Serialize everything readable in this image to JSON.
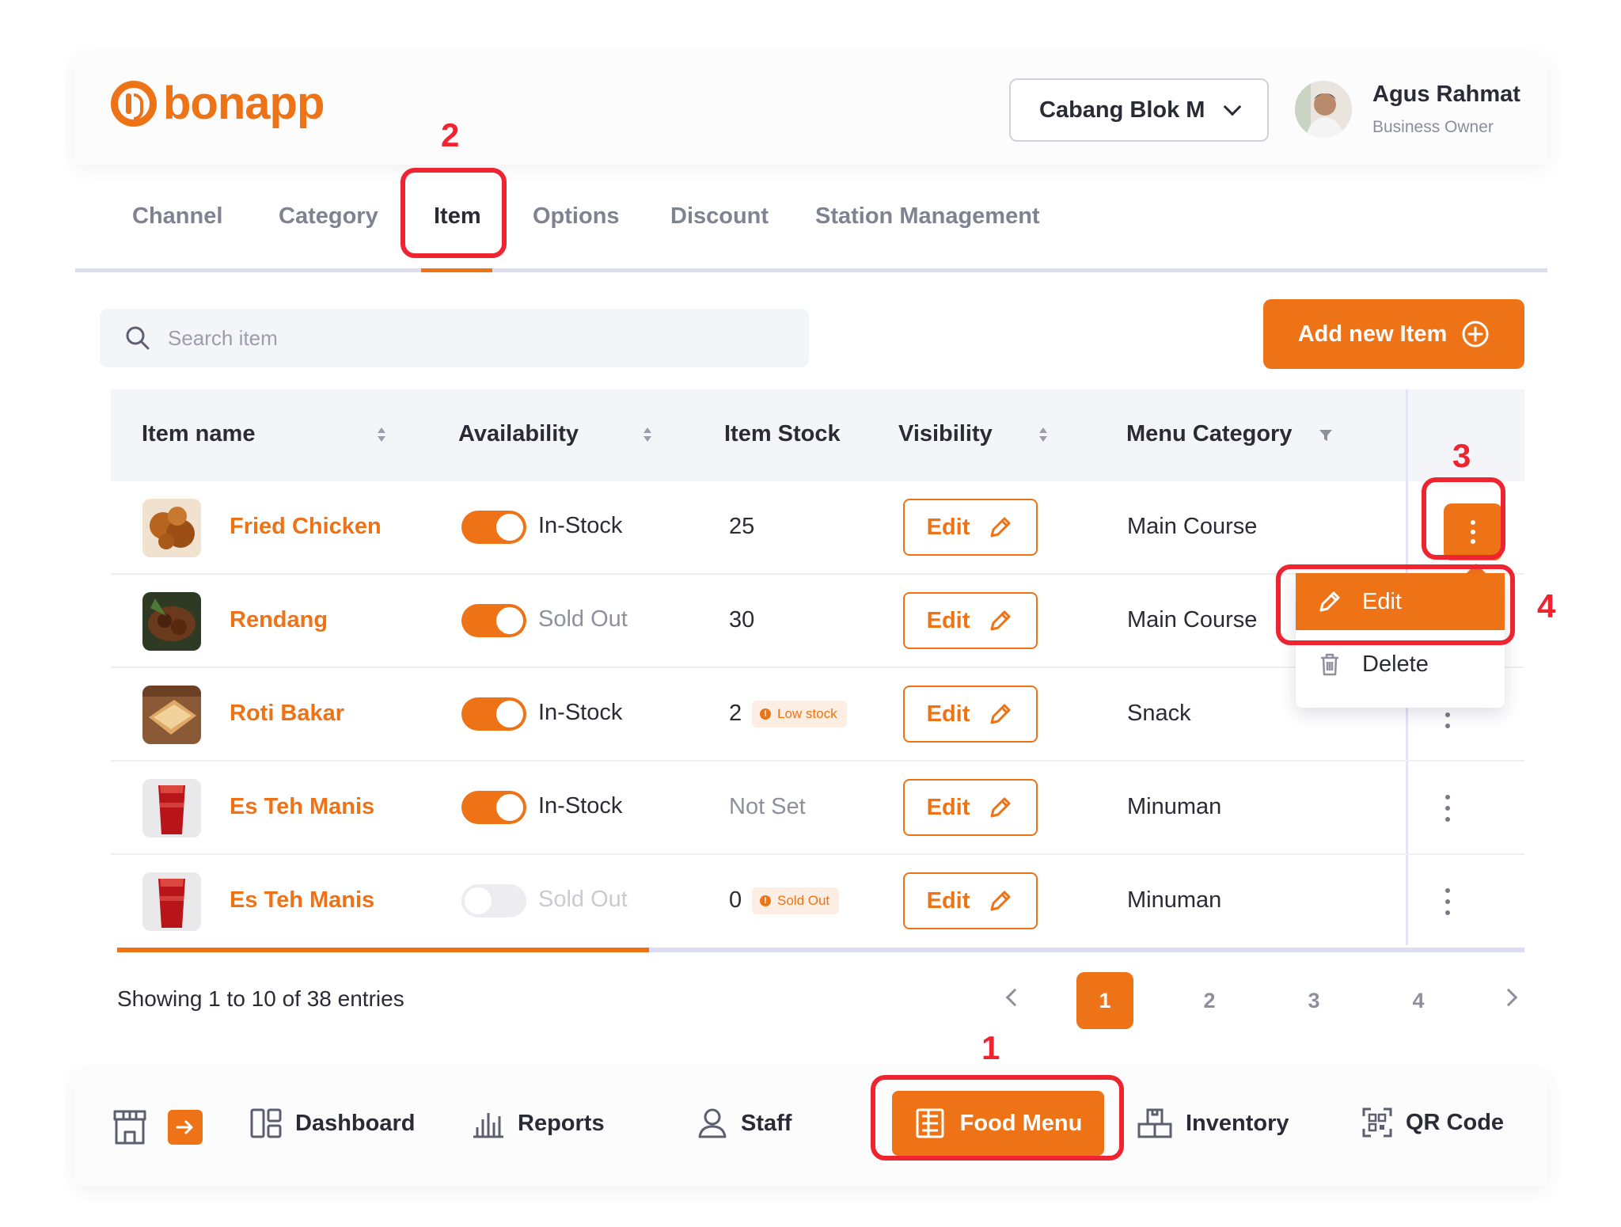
{
  "brand": {
    "name": "bonapp",
    "color": "#ee7316"
  },
  "header": {
    "branch_selector": {
      "value": "Cabang Blok M",
      "icon": "chevron-down-icon"
    },
    "user": {
      "name": "Agus Rahmat",
      "role": "Business Owner"
    }
  },
  "tabs": [
    {
      "label": "Channel",
      "active": false
    },
    {
      "label": "Category",
      "active": false
    },
    {
      "label": "Item",
      "active": true
    },
    {
      "label": "Options",
      "active": false
    },
    {
      "label": "Discount",
      "active": false
    },
    {
      "label": "Station Management",
      "active": false
    }
  ],
  "search": {
    "placeholder": "Search item",
    "icon": "search-icon"
  },
  "add_button": {
    "label": "Add new Item",
    "icon": "plus-circle-icon"
  },
  "table": {
    "columns": [
      "Item name",
      "Availability",
      "Item Stock",
      "Visibility",
      "Menu Category"
    ],
    "rows": [
      {
        "name": "Fried Chicken",
        "available": true,
        "availability": "In-Stock",
        "stock": "25",
        "stock_badge": "",
        "visibility_label": "Edit",
        "category": "Main Course"
      },
      {
        "name": "Rendang",
        "available": true,
        "availability": "Sold Out",
        "stock": "30",
        "stock_badge": "",
        "visibility_label": "Edit",
        "category": "Main Course"
      },
      {
        "name": "Roti Bakar",
        "available": true,
        "availability": "In-Stock",
        "stock": "2",
        "stock_badge": "Low stock",
        "visibility_label": "Edit",
        "category": "Snack"
      },
      {
        "name": "Es Teh Manis",
        "available": true,
        "availability": "In-Stock",
        "stock": "Not Set",
        "stock_badge": "",
        "visibility_label": "Edit",
        "category": "Minuman"
      },
      {
        "name": "Es Teh Manis",
        "available": false,
        "availability": "Sold Out",
        "stock": "0",
        "stock_badge": "Sold Out",
        "visibility_label": "Edit",
        "category": "Minuman"
      }
    ]
  },
  "row_menu": {
    "edit": "Edit",
    "delete": "Delete"
  },
  "pagination": {
    "summary": "Showing 1 to 10 of 38 entries",
    "pages": [
      "1",
      "2",
      "3",
      "4"
    ],
    "current": "1"
  },
  "bottom_nav": {
    "items": [
      {
        "label": "Dashboard",
        "icon": "dashboard-icon"
      },
      {
        "label": "Reports",
        "icon": "bar-chart-icon"
      },
      {
        "label": "Staff",
        "icon": "user-icon"
      },
      {
        "label": "Food Menu",
        "icon": "menu-list-icon",
        "active": true
      },
      {
        "label": "Inventory",
        "icon": "boxes-icon"
      },
      {
        "label": "QR Code",
        "icon": "qr-code-icon"
      }
    ]
  },
  "annotations": [
    "1",
    "2",
    "3",
    "4"
  ],
  "colors": {
    "accent": "#ee7316",
    "annotation": "#ee2430",
    "table_header_bg": "#f4f5f9"
  }
}
